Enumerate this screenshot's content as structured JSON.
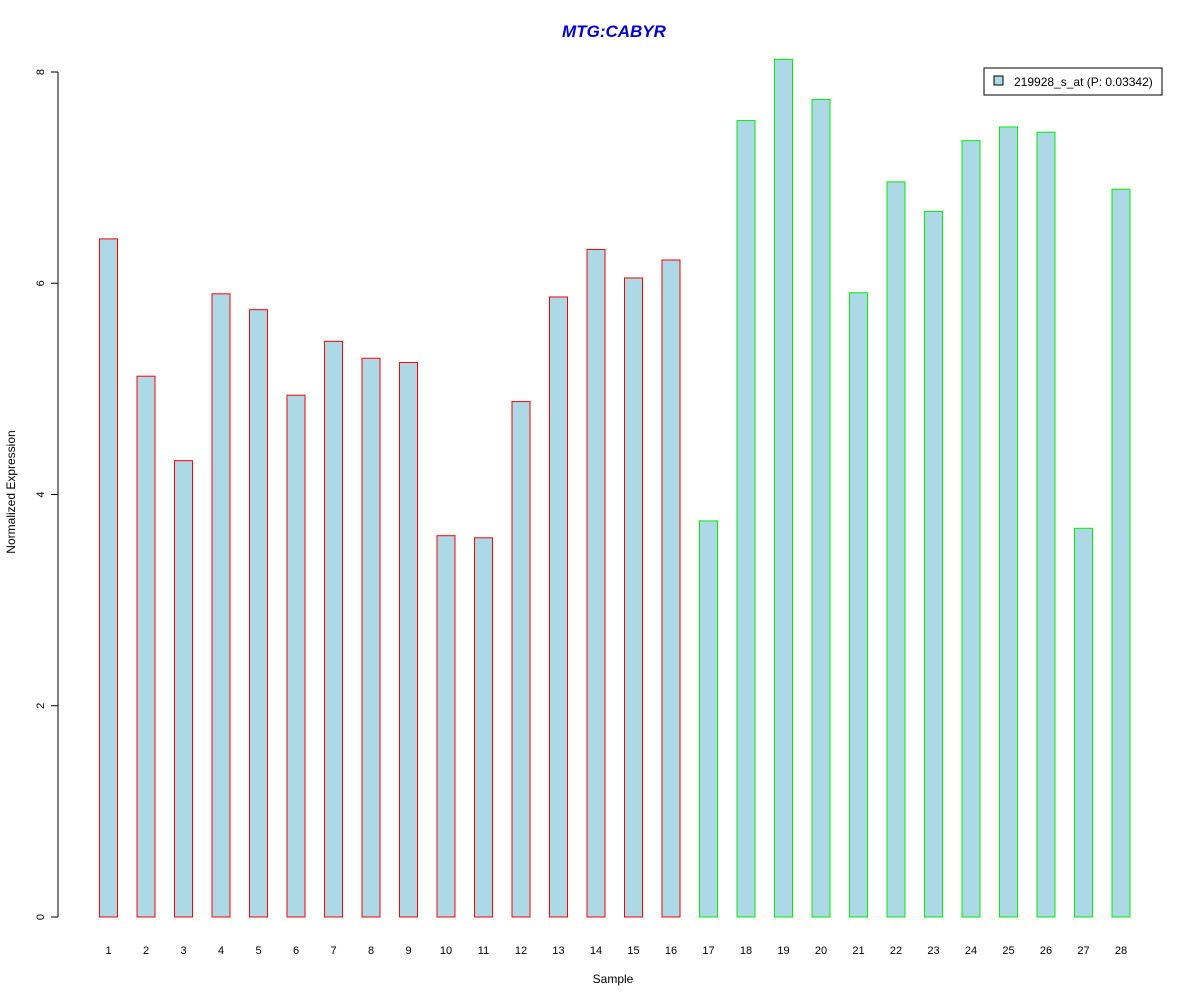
{
  "chart_data": {
    "type": "bar",
    "title": "MTG:CABYR",
    "xlabel": "Sample",
    "ylabel": "Normalized Expression",
    "ylim": [
      0,
      8.1
    ],
    "yticks": [
      0,
      2,
      4,
      6,
      8
    ],
    "categories": [
      "1",
      "2",
      "3",
      "4",
      "5",
      "6",
      "7",
      "8",
      "9",
      "10",
      "11",
      "12",
      "13",
      "14",
      "15",
      "16",
      "17",
      "18",
      "19",
      "20",
      "21",
      "22",
      "23",
      "24",
      "25",
      "26",
      "27",
      "28"
    ],
    "series": [
      {
        "name": "219928_s_at (P: 0.03342)",
        "values": [
          6.42,
          5.12,
          4.32,
          5.9,
          5.75,
          4.94,
          5.45,
          5.29,
          5.25,
          3.61,
          3.59,
          4.88,
          5.87,
          6.32,
          6.05,
          6.22,
          3.75,
          7.54,
          8.12,
          7.74,
          5.91,
          6.96,
          6.68,
          7.35,
          7.48,
          7.43,
          3.68,
          6.89
        ],
        "fill": "#add8e6",
        "border_colors": [
          "#ff0000",
          "#ff0000",
          "#ff0000",
          "#ff0000",
          "#ff0000",
          "#ff0000",
          "#ff0000",
          "#ff0000",
          "#ff0000",
          "#ff0000",
          "#ff0000",
          "#ff0000",
          "#ff0000",
          "#ff0000",
          "#ff0000",
          "#ff0000",
          "#00ee00",
          "#00ee00",
          "#00ee00",
          "#00ee00",
          "#00ee00",
          "#00ee00",
          "#00ee00",
          "#00ee00",
          "#00ee00",
          "#00ee00",
          "#00ee00",
          "#00ee00"
        ]
      }
    ],
    "legend": {
      "position": "top-right",
      "label": "219928_s_at (P: 0.03342)"
    },
    "grid": false
  }
}
